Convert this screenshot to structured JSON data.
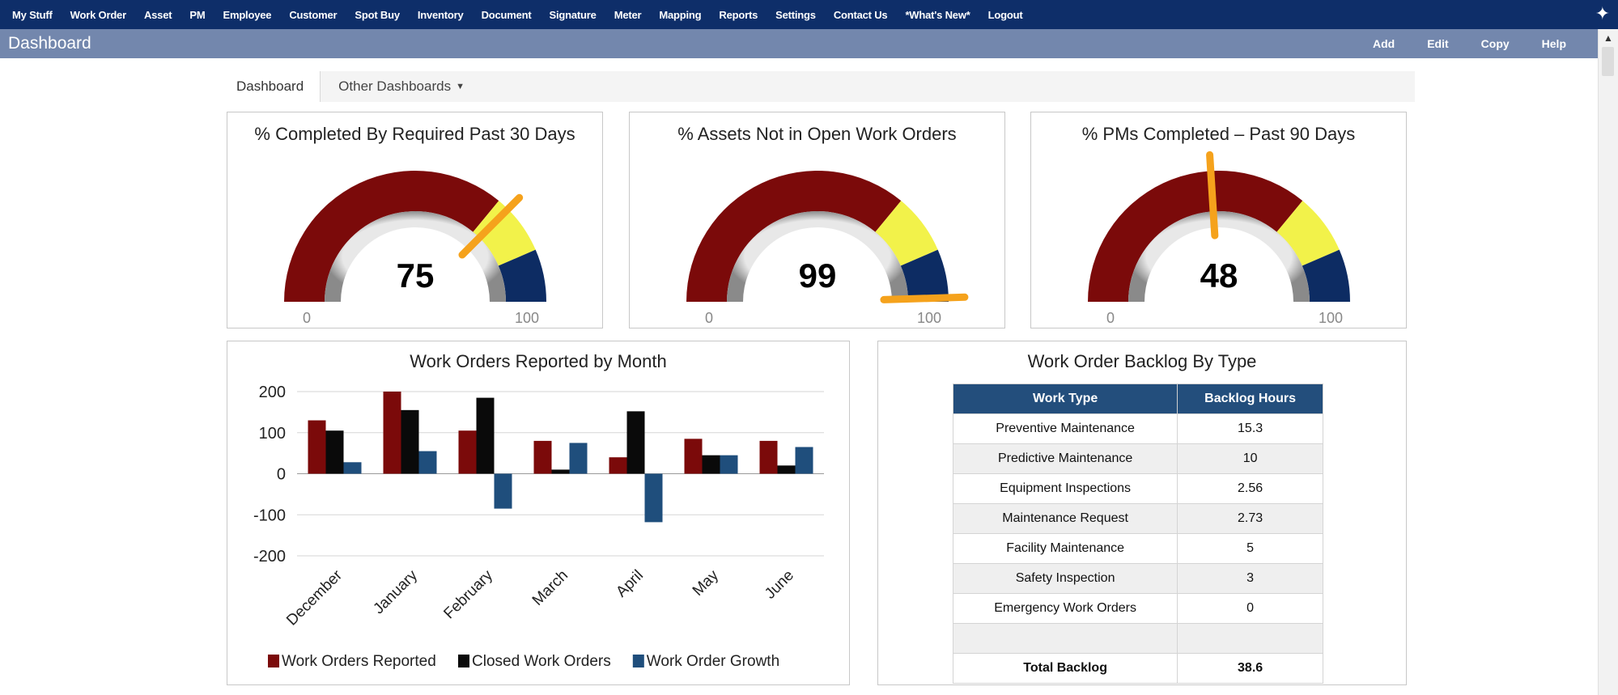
{
  "nav": {
    "items": [
      "My Stuff",
      "Work Order",
      "Asset",
      "PM",
      "Employee",
      "Customer",
      "Spot Buy",
      "Inventory",
      "Document",
      "Signature",
      "Meter",
      "Mapping",
      "Reports",
      "Settings",
      "Contact Us",
      "*What's New*",
      "Logout"
    ]
  },
  "titlebar": {
    "title": "Dashboard",
    "actions": [
      "Add",
      "Edit",
      "Copy",
      "Help"
    ]
  },
  "tabs": {
    "dashboard": "Dashboard",
    "other": "Other Dashboards"
  },
  "gauges": [
    {
      "title": "% Completed By Required Past 30 Days",
      "value": 75,
      "min_label": "0",
      "max_label": "100"
    },
    {
      "title": "% Assets Not in Open Work Orders",
      "value": 99,
      "min_label": "0",
      "max_label": "100"
    },
    {
      "title": "% PMs Completed – Past 90 Days",
      "value": 48,
      "min_label": "0",
      "max_label": "100"
    }
  ],
  "colors": {
    "nav_bg": "#0e2e69",
    "titlebar_bg": "#7387ad",
    "gauge_red": "#7b0a0a",
    "gauge_yellow": "#f2f24a",
    "gauge_blue": "#0d2c63",
    "needle": "#f5a21c",
    "series_reported": "#7b0a0a",
    "series_closed": "#0a0a0a",
    "series_growth": "#1f4e7c"
  },
  "chart_data": {
    "type": "bar",
    "title": "Work Orders Reported by Month",
    "categories": [
      "December",
      "January",
      "February",
      "March",
      "April",
      "May",
      "June"
    ],
    "series": [
      {
        "name": "Work Orders Reported",
        "values": [
          130,
          200,
          105,
          80,
          40,
          85,
          80
        ]
      },
      {
        "name": "Closed Work Orders",
        "values": [
          105,
          155,
          185,
          10,
          152,
          45,
          20
        ]
      },
      {
        "name": "Work Order Growth",
        "values": [
          28,
          55,
          -85,
          75,
          -118,
          45,
          65
        ]
      }
    ],
    "ylim": [
      -200,
      200
    ],
    "yticks": [
      "200",
      "100",
      "0",
      "-100",
      "-200"
    ],
    "xlabel": "",
    "ylabel": "",
    "legend": "bottom"
  },
  "backlog": {
    "title": "Work Order Backlog By Type",
    "headers": [
      "Work Type",
      "Backlog Hours"
    ],
    "rows": [
      [
        "Preventive Maintenance",
        "15.3"
      ],
      [
        "Predictive Maintenance",
        "10"
      ],
      [
        "Equipment Inspections",
        "2.56"
      ],
      [
        "Maintenance Request",
        "2.73"
      ],
      [
        "Facility Maintenance",
        "5"
      ],
      [
        "Safety Inspection",
        "3"
      ],
      [
        "Emergency Work Orders",
        "0"
      ],
      [
        "",
        ""
      ]
    ],
    "total": [
      "Total Backlog",
      "38.6"
    ]
  }
}
